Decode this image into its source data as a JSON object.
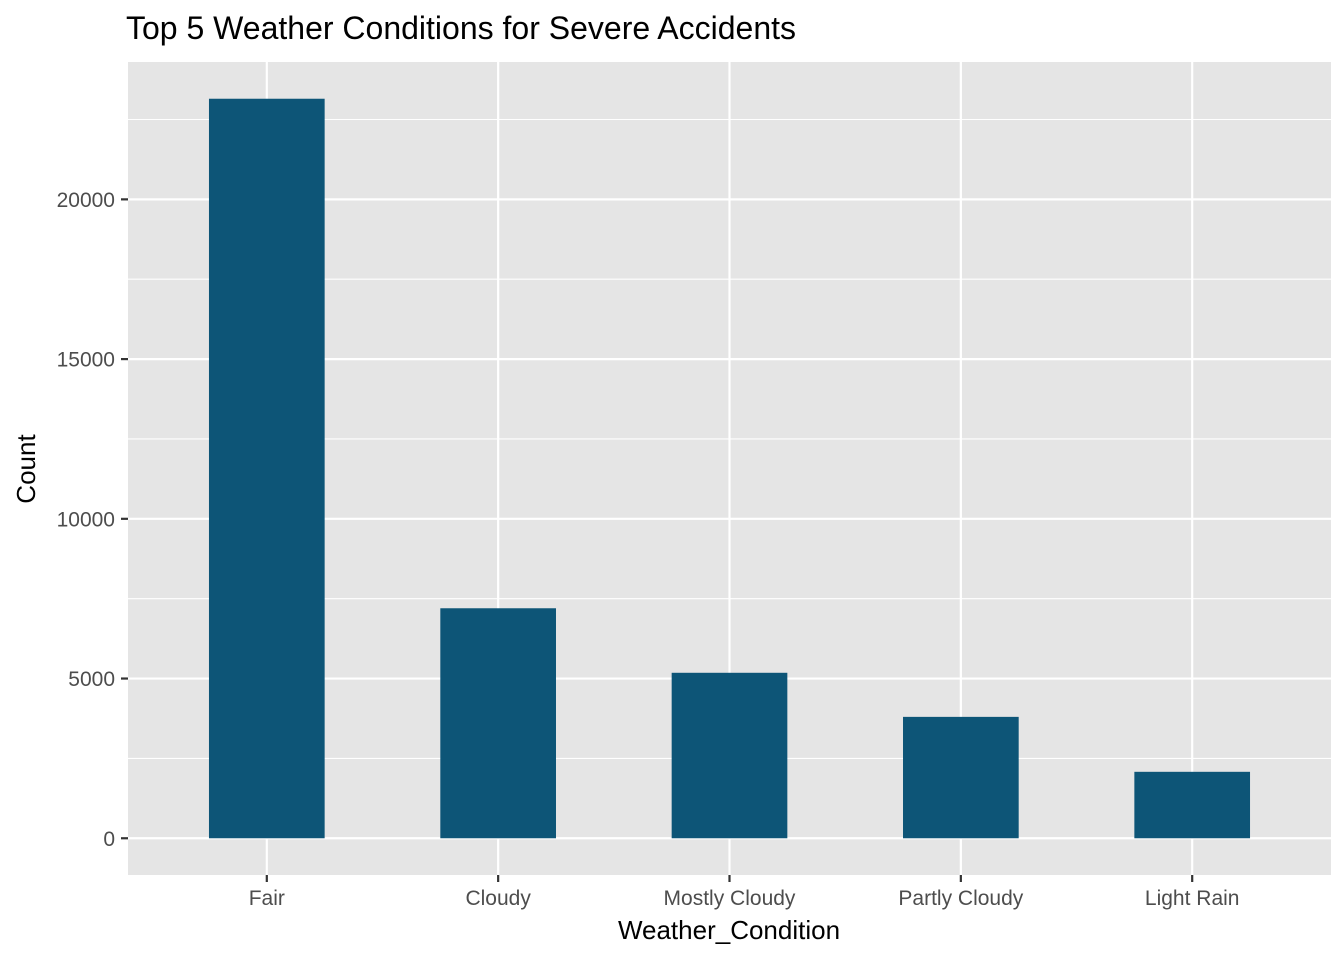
{
  "chart_data": {
    "type": "bar",
    "title": "Top 5 Weather Conditions for Severe Accidents",
    "xlabel": "Weather_Condition",
    "ylabel": "Count",
    "categories": [
      "Fair",
      "Cloudy",
      "Mostly Cloudy",
      "Partly Cloudy",
      "Light Rain"
    ],
    "values": [
      23150,
      7200,
      5180,
      3800,
      2080
    ],
    "ylim": [
      -1150,
      24300
    ],
    "yticks": [
      0,
      5000,
      10000,
      15000,
      20000
    ],
    "ytick_labels": [
      "0",
      "5000",
      "10000",
      "15000",
      "20000"
    ],
    "grid": true,
    "legend": "none",
    "bar_color": "#0d5577",
    "panel_background": "#e5e5e5",
    "grid_color": "#ffffff"
  }
}
